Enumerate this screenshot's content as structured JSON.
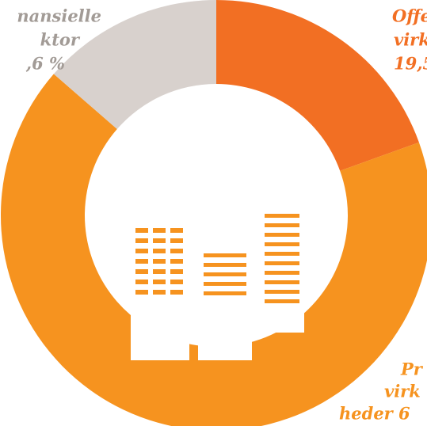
{
  "chart_data": {
    "type": "donut",
    "slices": [
      {
        "label_lines": [
          "Offe",
          "virk",
          "19,5"
        ],
        "value": 19.5,
        "color": "#f26f23"
      },
      {
        "label_lines": [
          "Pr",
          "virk",
          "heder 6"
        ],
        "value": 66.9,
        "color": "#f6931f"
      },
      {
        "label_lines": [
          "nansielle",
          "ktor",
          ",6 %"
        ],
        "value": 13.6,
        "color": "#d8d1cd"
      }
    ]
  }
}
